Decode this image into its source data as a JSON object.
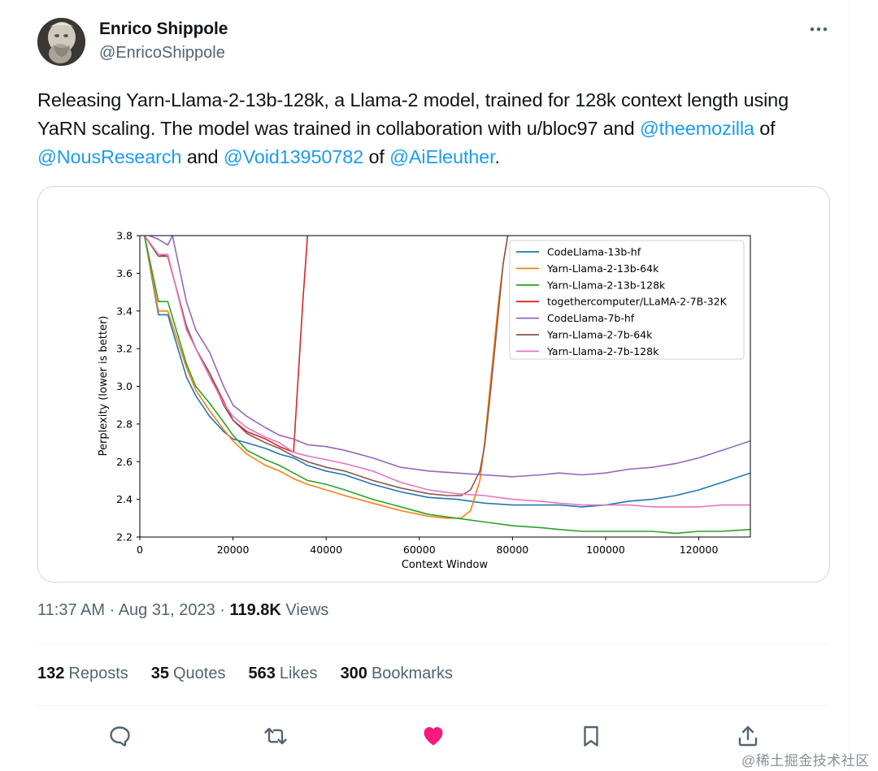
{
  "author": {
    "display_name": "Enrico Shippole",
    "handle": "@EnricoShippole"
  },
  "tweet": {
    "text_part1": "Releasing Yarn-Llama-2-13b-128k, a Llama-2 model, trained for 128k context length using YaRN scaling. The model was trained in collaboration with u/bloc97 and ",
    "mention1": "@theemozilla",
    "of1": " of ",
    "mention2": "@NousResearch",
    "and": " and ",
    "mention3": "@Void13950782",
    "of2": " of ",
    "mention4": "@AiEleuther",
    "end": "."
  },
  "meta": {
    "time": "11:37 AM",
    "dot1": " · ",
    "date": "Aug 31, 2023",
    "dot2": " · ",
    "views_count": "119.8K",
    "views_label": " Views"
  },
  "stats": {
    "reposts_count": "132",
    "reposts_label": "Reposts",
    "quotes_count": "35",
    "quotes_label": "Quotes",
    "likes_count": "563",
    "likes_label": "Likes",
    "bookmarks_count": "300",
    "bookmarks_label": "Bookmarks"
  },
  "icons": {
    "more": "more-horizontal-icon",
    "reply": "reply-icon",
    "repost": "repost-icon",
    "like": "heart-icon",
    "bookmark": "bookmark-icon",
    "share": "share-icon"
  },
  "colors": {
    "mention": "#1d9bf0",
    "like": "#f91880"
  },
  "watermark": "@稀土掘金技术社区",
  "chart_data": {
    "type": "line",
    "title": "",
    "xlabel": "Context Window",
    "ylabel": "Perplexity (lower is better)",
    "xlim": [
      0,
      131072
    ],
    "ylim": [
      2.2,
      3.8
    ],
    "xticks": [
      0,
      20000,
      40000,
      60000,
      80000,
      100000,
      120000
    ],
    "yticks": [
      2.2,
      2.4,
      2.6,
      2.8,
      3.0,
      3.2,
      3.4,
      3.6,
      3.8
    ],
    "xtick_labels": [
      "0",
      "20000",
      "40000",
      "60000",
      "80000",
      "100000",
      "120000"
    ],
    "ytick_labels": [
      "2.2",
      "2.4",
      "2.6",
      "2.8",
      "3.0",
      "3.2",
      "3.4",
      "3.6",
      "3.8"
    ],
    "legend_position": "upper-right",
    "grid": false,
    "series": [
      {
        "name": "CodeLlama-13b-hf",
        "color": "#1f77b4",
        "x": [
          1000,
          4000,
          6000,
          10000,
          12000,
          15000,
          18000,
          20000,
          23000,
          27000,
          30000,
          33000,
          36000,
          40000,
          44000,
          50000,
          56000,
          62000,
          68000,
          74000,
          80000,
          86000,
          90000,
          95000,
          100000,
          105000,
          110000,
          115000,
          120000,
          125000,
          131072
        ],
        "y": [
          3.8,
          3.38,
          3.38,
          3.05,
          2.95,
          2.84,
          2.76,
          2.72,
          2.7,
          2.67,
          2.64,
          2.62,
          2.58,
          2.55,
          2.53,
          2.48,
          2.44,
          2.41,
          2.4,
          2.38,
          2.37,
          2.37,
          2.37,
          2.36,
          2.37,
          2.39,
          2.4,
          2.42,
          2.45,
          2.49,
          2.54
        ]
      },
      {
        "name": "Yarn-Llama-2-13b-64k",
        "color": "#ff7f0e",
        "x": [
          1000,
          4000,
          6000,
          10000,
          12000,
          15000,
          18000,
          20000,
          23000,
          27000,
          30000,
          33000,
          36000,
          40000,
          44000,
          50000,
          56000,
          62000,
          66000,
          69000,
          71000,
          73000,
          74000,
          75000,
          76000,
          77000,
          78000,
          79000
        ],
        "y": [
          3.8,
          3.4,
          3.4,
          3.1,
          2.98,
          2.87,
          2.77,
          2.71,
          2.64,
          2.58,
          2.55,
          2.51,
          2.48,
          2.45,
          2.42,
          2.38,
          2.34,
          2.31,
          2.3,
          2.3,
          2.34,
          2.5,
          2.7,
          2.95,
          3.2,
          3.45,
          3.65,
          3.8
        ]
      },
      {
        "name": "Yarn-Llama-2-13b-128k",
        "color": "#2ca02c",
        "x": [
          1000,
          4000,
          6000,
          10000,
          12000,
          15000,
          18000,
          20000,
          23000,
          27000,
          30000,
          33000,
          36000,
          40000,
          44000,
          50000,
          56000,
          62000,
          68000,
          74000,
          80000,
          86000,
          90000,
          95000,
          100000,
          105000,
          110000,
          115000,
          120000,
          125000,
          131072
        ],
        "y": [
          3.8,
          3.45,
          3.45,
          3.12,
          3.0,
          2.91,
          2.81,
          2.74,
          2.66,
          2.61,
          2.58,
          2.54,
          2.5,
          2.48,
          2.45,
          2.4,
          2.36,
          2.32,
          2.3,
          2.28,
          2.26,
          2.25,
          2.24,
          2.23,
          2.23,
          2.23,
          2.23,
          2.22,
          2.23,
          2.23,
          2.24
        ]
      },
      {
        "name": "togethercomputer/LLaMA-2-7B-32K",
        "color": "#d62728",
        "x": [
          1000,
          4000,
          6000,
          10000,
          12000,
          15000,
          18000,
          20000,
          23000,
          27000,
          30000,
          32000,
          33000,
          34000,
          35000,
          36000
        ],
        "y": [
          3.8,
          3.7,
          3.69,
          3.32,
          3.2,
          3.07,
          2.92,
          2.82,
          2.76,
          2.72,
          2.68,
          2.66,
          2.65,
          3.05,
          3.45,
          3.8
        ]
      },
      {
        "name": "CodeLlama-7b-hf",
        "color": "#9467bd",
        "x": [
          2000,
          4000,
          6000,
          7000,
          10000,
          12000,
          15000,
          18000,
          20000,
          23000,
          27000,
          30000,
          33000,
          36000,
          40000,
          44000,
          50000,
          56000,
          62000,
          68000,
          74000,
          80000,
          86000,
          90000,
          95000,
          100000,
          105000,
          110000,
          115000,
          120000,
          125000,
          131072
        ],
        "y": [
          3.8,
          3.78,
          3.75,
          3.8,
          3.45,
          3.3,
          3.18,
          3.0,
          2.9,
          2.84,
          2.78,
          2.74,
          2.72,
          2.69,
          2.68,
          2.66,
          2.62,
          2.57,
          2.55,
          2.54,
          2.53,
          2.52,
          2.53,
          2.54,
          2.53,
          2.54,
          2.56,
          2.57,
          2.59,
          2.62,
          2.66,
          2.71
        ]
      },
      {
        "name": "Yarn-Llama-2-7b-64k",
        "color": "#8c564b",
        "x": [
          1000,
          4000,
          6000,
          10000,
          12000,
          15000,
          18000,
          20000,
          23000,
          27000,
          30000,
          33000,
          36000,
          40000,
          44000,
          50000,
          56000,
          62000,
          66000,
          69000,
          71000,
          73000,
          74000,
          75000,
          76000,
          77000,
          78000,
          79000
        ],
        "y": [
          3.8,
          3.69,
          3.69,
          3.32,
          3.2,
          3.07,
          2.9,
          2.82,
          2.75,
          2.7,
          2.67,
          2.63,
          2.6,
          2.57,
          2.55,
          2.5,
          2.46,
          2.43,
          2.42,
          2.42,
          2.45,
          2.55,
          2.68,
          2.9,
          3.15,
          3.4,
          3.65,
          3.8
        ]
      },
      {
        "name": "Yarn-Llama-2-7b-128k",
        "color": "#e377c2",
        "x": [
          1000,
          4000,
          6000,
          10000,
          12000,
          15000,
          18000,
          20000,
          23000,
          27000,
          30000,
          33000,
          36000,
          40000,
          44000,
          50000,
          56000,
          62000,
          68000,
          74000,
          80000,
          86000,
          90000,
          95000,
          100000,
          105000,
          110000,
          115000,
          120000,
          125000,
          131072
        ],
        "y": [
          3.8,
          3.7,
          3.7,
          3.3,
          3.2,
          3.05,
          2.91,
          2.84,
          2.78,
          2.73,
          2.7,
          2.65,
          2.63,
          2.61,
          2.59,
          2.55,
          2.49,
          2.45,
          2.43,
          2.42,
          2.4,
          2.39,
          2.38,
          2.37,
          2.37,
          2.37,
          2.36,
          2.36,
          2.36,
          2.37,
          2.37
        ]
      }
    ]
  }
}
